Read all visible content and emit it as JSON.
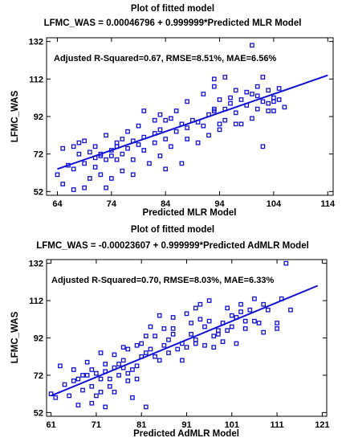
{
  "chart_data": [
    {
      "type": "scatter",
      "title": "Plot of fitted model",
      "subtitle": "LFMC_WAS =  0.00046796 + 0.999999*Predicted MLR Model",
      "annotation": "Adjusted R-Squared=0.67, RMSE=8.51%, MAE=6.56%",
      "xlabel": "Predicted MLR Model",
      "ylabel": "LFMC_WAS",
      "xlim": [
        62,
        115
      ],
      "ylim": [
        50,
        134
      ],
      "xticks": [
        64,
        74,
        84,
        94,
        104,
        114
      ],
      "yticks": [
        52,
        72,
        92,
        112,
        132
      ],
      "xtick_labels": [
        "64",
        "74",
        "84",
        "94",
        "104",
        "114"
      ],
      "ytick_labels": [
        "52",
        "72",
        "92",
        "112",
        "132"
      ],
      "marker_color": "#1010d8",
      "line_color": "#1010d8",
      "fit_line": {
        "x": [
          64,
          114
        ],
        "y": [
          64,
          114
        ]
      },
      "points": [
        [
          64,
          61
        ],
        [
          65,
          56
        ],
        [
          65,
          75
        ],
        [
          66,
          66
        ],
        [
          67,
          64
        ],
        [
          67,
          76
        ],
        [
          67,
          53
        ],
        [
          68,
          78
        ],
        [
          68,
          72
        ],
        [
          69,
          67
        ],
        [
          69,
          54
        ],
        [
          69,
          79
        ],
        [
          70,
          59
        ],
        [
          70,
          73
        ],
        [
          71,
          70
        ],
        [
          71,
          65
        ],
        [
          71,
          76
        ],
        [
          72,
          72
        ],
        [
          72,
          71
        ],
        [
          72,
          61
        ],
        [
          73,
          69
        ],
        [
          73,
          82
        ],
        [
          73,
          54
        ],
        [
          74,
          74
        ],
        [
          74,
          71
        ],
        [
          74,
          59
        ],
        [
          75,
          76
        ],
        [
          75,
          78
        ],
        [
          75,
          69
        ],
        [
          76,
          72
        ],
        [
          76,
          80
        ],
        [
          76,
          63
        ],
        [
          77,
          75
        ],
        [
          77,
          84
        ],
        [
          78,
          79
        ],
        [
          78,
          69
        ],
        [
          78,
          61
        ],
        [
          79,
          87
        ],
        [
          79,
          77
        ],
        [
          80,
          95
        ],
        [
          80,
          81
        ],
        [
          80,
          74
        ],
        [
          81,
          67
        ],
        [
          82,
          90
        ],
        [
          82,
          83
        ],
        [
          82,
          78
        ],
        [
          83,
          93
        ],
        [
          83,
          85
        ],
        [
          83,
          71
        ],
        [
          84,
          80
        ],
        [
          84,
          90
        ],
        [
          84,
          64
        ],
        [
          85,
          91
        ],
        [
          85,
          76
        ],
        [
          86,
          84
        ],
        [
          86,
          95
        ],
        [
          87,
          88
        ],
        [
          87,
          67
        ],
        [
          88,
          80
        ],
        [
          88,
          100
        ],
        [
          88,
          86
        ],
        [
          89,
          90
        ],
        [
          90,
          89
        ],
        [
          90,
          78
        ],
        [
          91,
          104
        ],
        [
          91,
          87
        ],
        [
          92,
          93
        ],
        [
          92,
          82
        ],
        [
          93,
          96
        ],
        [
          93,
          108
        ],
        [
          93,
          112
        ],
        [
          93,
          95
        ],
        [
          94,
          88
        ],
        [
          94,
          101
        ],
        [
          94,
          85
        ],
        [
          95,
          90
        ],
        [
          95,
          96
        ],
        [
          95,
          113
        ],
        [
          96,
          99
        ],
        [
          96,
          102
        ],
        [
          97,
          94
        ],
        [
          97,
          88
        ],
        [
          97,
          106
        ],
        [
          98,
          88
        ],
        [
          98,
          101
        ],
        [
          99,
          98
        ],
        [
          99,
          105
        ],
        [
          100,
          91
        ],
        [
          100,
          104
        ],
        [
          100,
          130
        ],
        [
          101,
          96
        ],
        [
          101,
          103
        ],
        [
          101,
          108
        ],
        [
          102,
          113
        ],
        [
          102,
          76
        ],
        [
          102,
          100
        ],
        [
          103,
          95
        ],
        [
          103,
          106
        ],
        [
          103,
          99
        ],
        [
          104,
          95
        ],
        [
          104,
          102
        ],
        [
          104,
          100
        ],
        [
          105,
          101
        ],
        [
          105,
          107
        ],
        [
          106,
          97
        ]
      ]
    },
    {
      "type": "scatter",
      "title": "Plot of fitted model",
      "subtitle": "LFMC_WAS = -0.00023607 + 0.999999*Predicted AdMLR Model",
      "annotation": "Adjusted R-Squared=0.70, RMSE=8.03%, MAE=6.33%",
      "xlabel": "Predicted AdMLR Model",
      "ylabel": "LFMC_WAS",
      "xlim": [
        60,
        122
      ],
      "ylim": [
        50,
        134
      ],
      "xticks": [
        61,
        71,
        81,
        91,
        101,
        111,
        121
      ],
      "yticks": [
        52,
        72,
        92,
        112,
        132
      ],
      "xtick_labels": [
        "61",
        "71",
        "81",
        "91",
        "101",
        "111",
        "121"
      ],
      "ytick_labels": [
        "52",
        "72",
        "92",
        "112",
        "132"
      ],
      "marker_color": "#1010d8",
      "line_color": "#1010d8",
      "fit_line": {
        "x": [
          61,
          120
        ],
        "y": [
          61,
          120
        ]
      },
      "points": [
        [
          61,
          62
        ],
        [
          62,
          60
        ],
        [
          63,
          77
        ],
        [
          64,
          67
        ],
        [
          65,
          61
        ],
        [
          66,
          69
        ],
        [
          66,
          75
        ],
        [
          67,
          70
        ],
        [
          67,
          56
        ],
        [
          68,
          72
        ],
        [
          68,
          64
        ],
        [
          69,
          79
        ],
        [
          69,
          72
        ],
        [
          70,
          57
        ],
        [
          70,
          66
        ],
        [
          70,
          75
        ],
        [
          71,
          73
        ],
        [
          71,
          61
        ],
        [
          72,
          84
        ],
        [
          72,
          70
        ],
        [
          72,
          63
        ],
        [
          73,
          74
        ],
        [
          73,
          78
        ],
        [
          73,
          55
        ],
        [
          74,
          66
        ],
        [
          74,
          70
        ],
        [
          75,
          76
        ],
        [
          75,
          83
        ],
        [
          75,
          63
        ],
        [
          76,
          78
        ],
        [
          76,
          72
        ],
        [
          77,
          76
        ],
        [
          77,
          80
        ],
        [
          77,
          87
        ],
        [
          78,
          86
        ],
        [
          78,
          69
        ],
        [
          78,
          73
        ],
        [
          79,
          75
        ],
        [
          79,
          60
        ],
        [
          80,
          88
        ],
        [
          80,
          77
        ],
        [
          80,
          70
        ],
        [
          81,
          89
        ],
        [
          81,
          82
        ],
        [
          82,
          93
        ],
        [
          82,
          84
        ],
        [
          82,
          55
        ],
        [
          83,
          98
        ],
        [
          83,
          86
        ],
        [
          84,
          93
        ],
        [
          84,
          82
        ],
        [
          85,
          80
        ],
        [
          85,
          104
        ],
        [
          86,
          88
        ],
        [
          86,
          97
        ],
        [
          87,
          84
        ],
        [
          87,
          91
        ],
        [
          88,
          97
        ],
        [
          88,
          103
        ],
        [
          88,
          94
        ],
        [
          89,
          86
        ],
        [
          90,
          89
        ],
        [
          90,
          80
        ],
        [
          91,
          87
        ],
        [
          91,
          105
        ],
        [
          92,
          100
        ],
        [
          92,
          94
        ],
        [
          93,
          91
        ],
        [
          93,
          89
        ],
        [
          93,
          108
        ],
        [
          94,
          110
        ],
        [
          94,
          102
        ],
        [
          95,
          98
        ],
        [
          95,
          88
        ],
        [
          96,
          101
        ],
        [
          96,
          112
        ],
        [
          97,
          93
        ],
        [
          97,
          87
        ],
        [
          98,
          96
        ],
        [
          98,
          94
        ],
        [
          99,
          100
        ],
        [
          99,
          90
        ],
        [
          100,
          108
        ],
        [
          100,
          96
        ],
        [
          101,
          98
        ],
        [
          101,
          104
        ],
        [
          102,
          89
        ],
        [
          102,
          103
        ],
        [
          103,
          106
        ],
        [
          103,
          110
        ],
        [
          104,
          101
        ],
        [
          104,
          97
        ],
        [
          105,
          107
        ],
        [
          106,
          101
        ],
        [
          106,
          113
        ],
        [
          107,
          100
        ],
        [
          108,
          95
        ],
        [
          108,
          110
        ],
        [
          109,
          107
        ],
        [
          111,
          100
        ],
        [
          111,
          97
        ],
        [
          112,
          113
        ],
        [
          113,
          132
        ],
        [
          114,
          107
        ]
      ]
    }
  ]
}
